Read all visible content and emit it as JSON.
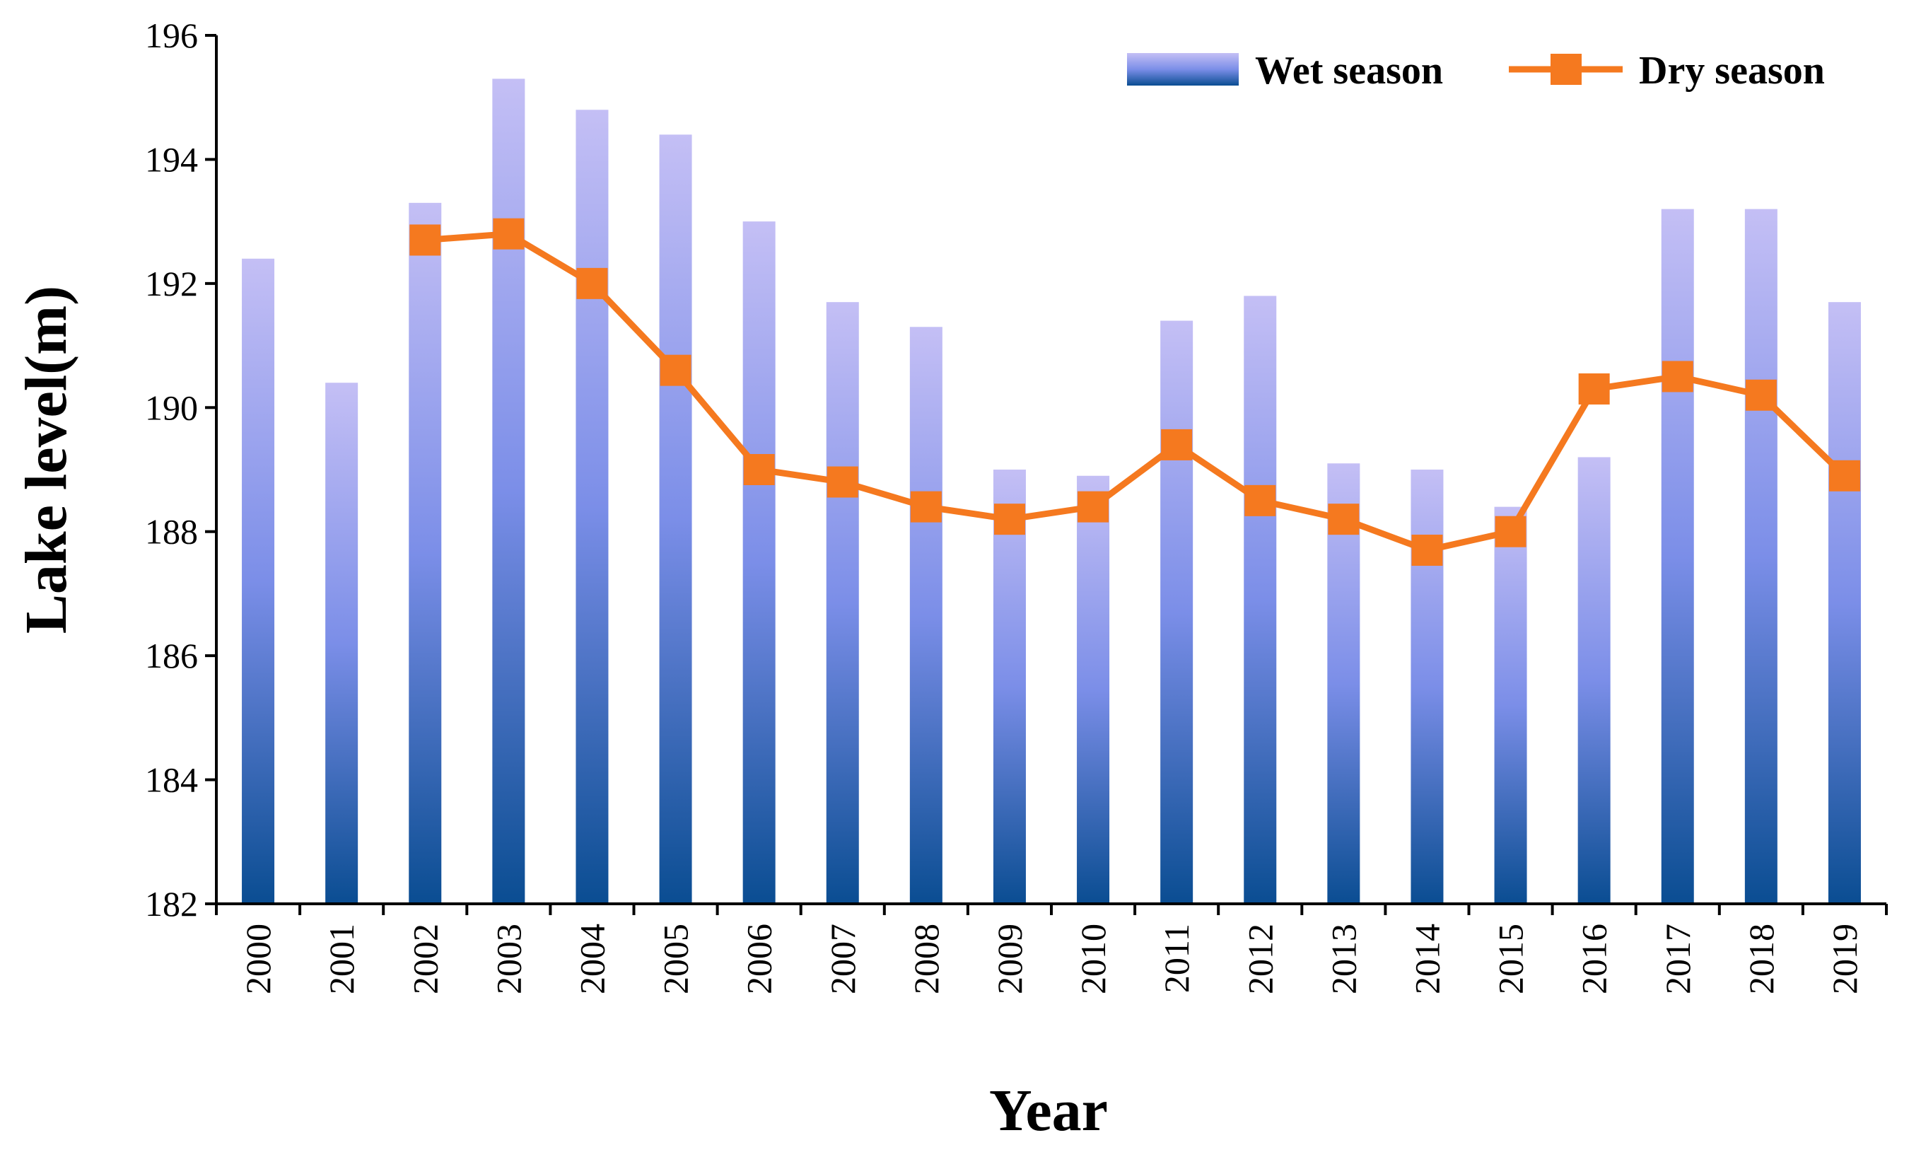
{
  "chart_data": {
    "type": "bar",
    "title": "",
    "xlabel": "Year",
    "ylabel": "Lake level(m)",
    "ylim": [
      182,
      196
    ],
    "yticks": [
      182,
      184,
      186,
      188,
      190,
      192,
      194,
      196
    ],
    "grid": false,
    "legend_position": "top-right",
    "categories": [
      "2000",
      "2001",
      "2002",
      "2003",
      "2004",
      "2005",
      "2006",
      "2007",
      "2008",
      "2009",
      "2010",
      "2011",
      "2012",
      "2013",
      "2014",
      "2015",
      "2016",
      "2017",
      "2018",
      "2019"
    ],
    "series": [
      {
        "name": "Wet season",
        "kind": "bar",
        "colors": {
          "top": "#c4bff5",
          "middle": "#7b8ee8",
          "bottom": "#0a4d92"
        },
        "values": [
          192.4,
          190.4,
          193.3,
          195.3,
          194.8,
          194.4,
          193.0,
          191.7,
          191.3,
          189.0,
          188.9,
          191.4,
          191.8,
          189.1,
          189.0,
          188.4,
          189.2,
          193.2,
          193.2,
          191.7
        ]
      },
      {
        "name": "Dry season",
        "kind": "line",
        "color": "#f5791f",
        "marker": "square",
        "values": [
          null,
          null,
          192.7,
          192.8,
          192.0,
          190.6,
          189.0,
          188.8,
          188.4,
          188.2,
          188.4,
          189.4,
          188.5,
          188.2,
          187.7,
          188.0,
          190.3,
          190.5,
          190.2,
          188.9
        ]
      }
    ]
  }
}
